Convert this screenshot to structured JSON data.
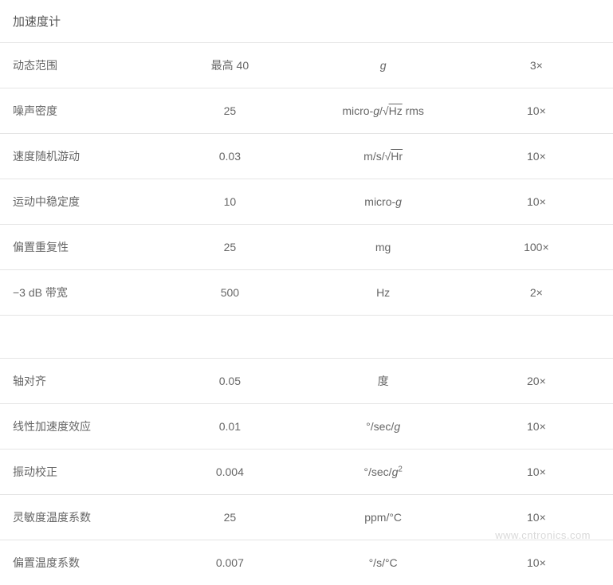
{
  "header": {
    "title": "加速度计"
  },
  "section1": {
    "rows": [
      {
        "label": "动态范围",
        "value": "最高 40",
        "unit_html": "<span class=\"italic\">g</span>",
        "factor": "3×"
      },
      {
        "label": "噪声密度",
        "value": "25",
        "unit_html": "micro-<span class=\"italic\">g</span>/√<span class=\"sqrt\">Hz</span> rms",
        "factor": "10×"
      },
      {
        "label": "速度随机游动",
        "value": "0.03",
        "unit_html": "m/s/√<span class=\"sqrt\">Hr</span>",
        "factor": "10×"
      },
      {
        "label": "运动中稳定度",
        "value": "10",
        "unit_html": "micro-<span class=\"italic\">g</span>",
        "factor": "10×"
      },
      {
        "label": "偏置重复性",
        "value": "25",
        "unit_html": "mg",
        "factor": "100×"
      },
      {
        "label": "−3 dB 带宽",
        "value": "500",
        "unit_html": "Hz",
        "factor": "2×"
      }
    ]
  },
  "section2": {
    "rows": [
      {
        "label": "轴对齐",
        "value": "0.05",
        "unit_html": "度",
        "factor": "20×"
      },
      {
        "label": "线性加速度效应",
        "value": "0.01",
        "unit_html": "°/sec/<span class=\"italic\">g</span>",
        "factor": "10×"
      },
      {
        "label": "振动校正",
        "value": "0.004",
        "unit_html": "°/sec/<span class=\"italic\">g</span><span class=\"sup\">2</span>",
        "factor": "10×"
      },
      {
        "label": "灵敏度温度系数",
        "value": "25",
        "unit_html": "ppm/°C",
        "factor": "10×"
      },
      {
        "label": "偏置温度系数",
        "value": "0.007",
        "unit_html": "°/s/°C",
        "factor": "10×"
      }
    ]
  },
  "watermark": "www.cntronics.com",
  "style": {
    "text_color": "#666666",
    "border_color": "#e5e5e5",
    "background_color": "#ffffff",
    "watermark_color": "#d9d9d9",
    "font_size_body": 14,
    "font_size_header": 15,
    "font_size_watermark": 13,
    "col_widths_pct": [
      28,
      24,
      28,
      20
    ],
    "row_padding_v": 18,
    "row_padding_h": 16
  }
}
